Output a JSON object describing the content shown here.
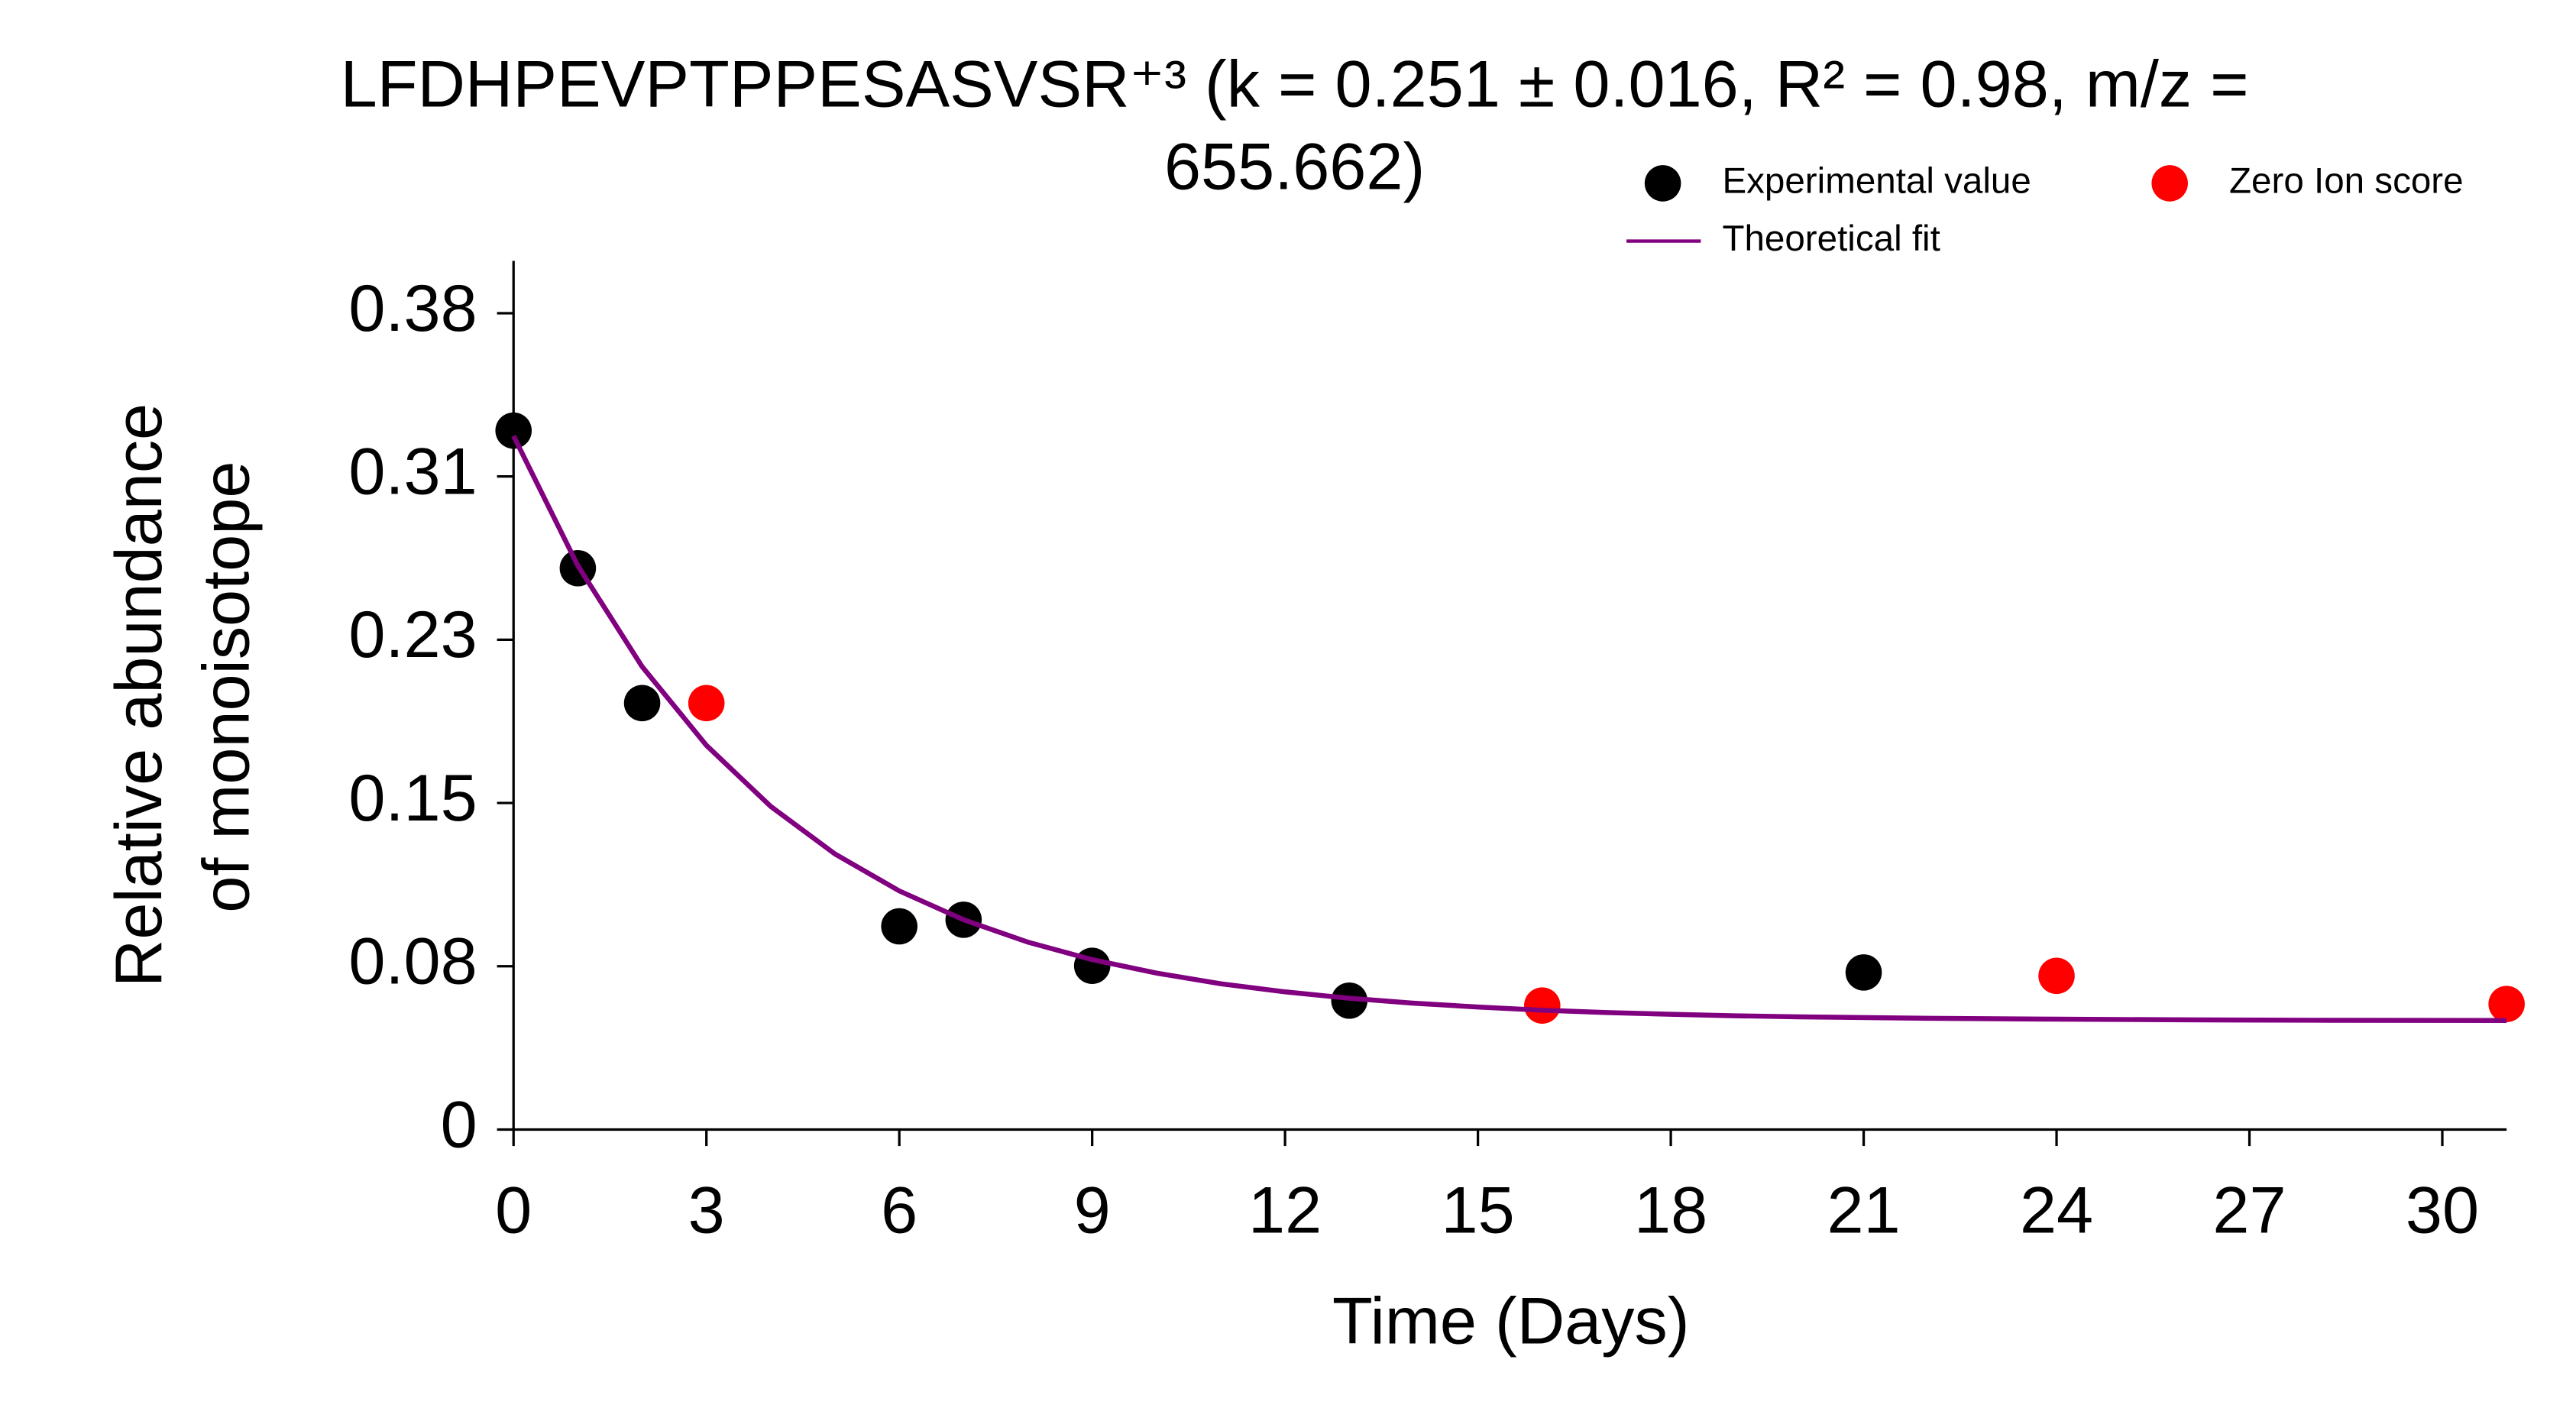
{
  "chart_data": {
    "type": "scatter",
    "title": [
      "LFDHPEVPTPPESASVSR⁺³ (k = 0.251 ± 0.016, R² = 0.98, m/z =",
      "655.662)"
    ],
    "xlabel": "Time (Days)",
    "ylabel": [
      "Relative abundance",
      "of monoisotope"
    ],
    "xlim": [
      0,
      31
    ],
    "ylim": [
      0,
      0.407
    ],
    "xticks": [
      0,
      3,
      6,
      9,
      12,
      15,
      18,
      21,
      24,
      27,
      30
    ],
    "yticks": [
      0,
      {
        "value": 0.0765,
        "label": "0.08"
      },
      {
        "value": 0.153,
        "label": "0.15"
      },
      {
        "value": 0.2295,
        "label": "0.23"
      },
      {
        "value": 0.306,
        "label": "0.31"
      },
      {
        "value": 0.3825,
        "label": "0.38"
      }
    ],
    "grid": false,
    "series": [
      {
        "name": "Experimental value",
        "type": "scatter",
        "color": "#000000",
        "x": [
          0,
          1,
          2,
          6,
          7,
          9,
          13,
          21
        ],
        "values": [
          0.3275,
          0.263,
          0.1998,
          0.0952,
          0.0983,
          0.0767,
          0.0604,
          0.0736
        ]
      },
      {
        "name": "Zero Ion score",
        "type": "scatter",
        "color": "#ff0000",
        "x": [
          3,
          16,
          24,
          31
        ],
        "values": [
          0.1998,
          0.0581,
          0.072,
          0.0588
        ]
      },
      {
        "name": "Theoretical fit",
        "type": "line",
        "color": "#800080",
        "x": [
          0,
          1,
          2,
          3,
          4,
          5,
          6,
          7,
          8,
          9,
          10,
          11,
          12,
          13,
          14,
          15,
          16,
          17,
          18,
          19,
          20,
          22,
          24,
          26,
          28,
          31
        ],
        "values": [
          0.325,
          0.2642,
          0.2169,
          0.18,
          0.1514,
          0.1291,
          0.1118,
          0.0983,
          0.0878,
          0.0796,
          0.0733,
          0.0683,
          0.0645,
          0.0615,
          0.0592,
          0.0574,
          0.0559,
          0.0548,
          0.054,
          0.0533,
          0.0528,
          0.0521,
          0.0517,
          0.0514,
          0.0512,
          0.0511
        ]
      }
    ]
  }
}
